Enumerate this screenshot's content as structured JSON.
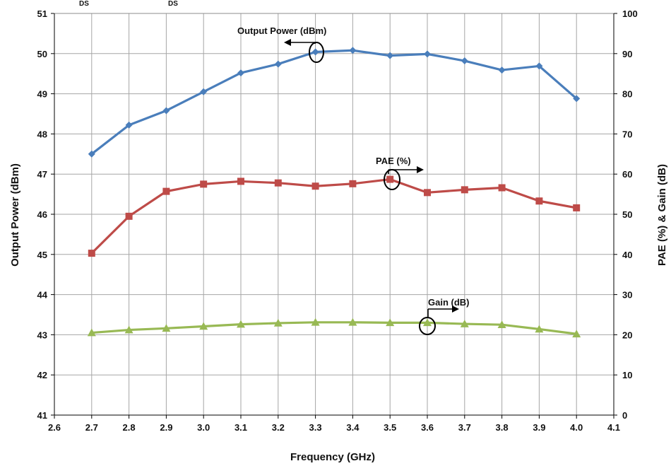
{
  "chart_data": {
    "type": "line",
    "title": "",
    "xlabel": "Frequency (GHz)",
    "ylabel_left": "Output Power (dBm)",
    "ylabel_right": "PAE (%) & Gain (dB)",
    "xlim": [
      2.6,
      4.1
    ],
    "ylim_left": [
      41,
      51
    ],
    "ylim_right": [
      0,
      100
    ],
    "x_ticks": [
      "2.6",
      "2.7",
      "2.8",
      "2.9",
      "3.0",
      "3.1",
      "3.2",
      "3.3",
      "3.4",
      "3.5",
      "3.6",
      "3.7",
      "3.8",
      "3.9",
      "4.0",
      "4.1"
    ],
    "y_left_ticks": [
      "41",
      "42",
      "43",
      "44",
      "45",
      "46",
      "47",
      "48",
      "49",
      "50",
      "51"
    ],
    "y_right_ticks": [
      "0",
      "10",
      "20",
      "30",
      "40",
      "50",
      "60",
      "70",
      "80",
      "90",
      "100"
    ],
    "grid": true,
    "x": [
      2.7,
      2.8,
      2.9,
      3.0,
      3.1,
      3.2,
      3.3,
      3.4,
      3.5,
      3.6,
      3.7,
      3.8,
      3.9,
      4.0
    ],
    "series": [
      {
        "name": "Output Power (dBm)",
        "axis": "left",
        "color": "#4a7ebb",
        "marker": "diamond",
        "values": [
          47.5,
          48.22,
          48.58,
          49.05,
          49.52,
          49.74,
          50.04,
          50.08,
          49.95,
          49.99,
          49.82,
          49.59,
          49.69,
          48.88
        ]
      },
      {
        "name": "PAE (%)",
        "axis": "right",
        "color": "#be4b48",
        "marker": "square",
        "values": [
          40.3,
          49.5,
          55.7,
          57.5,
          58.2,
          57.8,
          57.0,
          57.6,
          58.7,
          55.4,
          56.1,
          56.6,
          53.3,
          51.6
        ]
      },
      {
        "name": "Gain (dB)",
        "axis": "right",
        "color": "#98b954",
        "marker": "triangle",
        "values": [
          20.5,
          21.2,
          21.6,
          22.1,
          22.6,
          22.9,
          23.1,
          23.1,
          23.0,
          23.0,
          22.7,
          22.5,
          21.4,
          20.2
        ]
      }
    ]
  },
  "annotations": {
    "output_power": "Output Power (dBm)",
    "pae": "PAE (%)",
    "gain": "Gain (dB)"
  },
  "top_caption_fragment": "DS          , DS          ,                                                   ,           "
}
